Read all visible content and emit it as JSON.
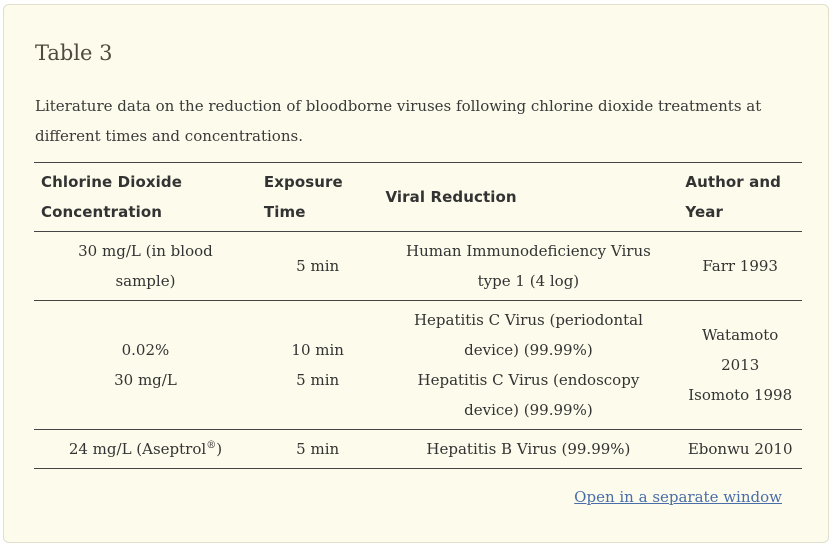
{
  "table_title": "Table 3",
  "caption": "Literature data on the reduction of bloodborne viruses following chlorine dioxide treatments at different times and concentrations.",
  "headers": {
    "concentration": [
      "Chlorine Dioxide",
      "Concentration"
    ],
    "time": [
      "Exposure",
      "Time"
    ],
    "reduction": [
      "Viral Reduction"
    ],
    "author": [
      "Author and",
      "Year"
    ]
  },
  "rows": [
    {
      "concentration": [
        "30 mg/L (in blood",
        "sample)"
      ],
      "time": [
        "5 min"
      ],
      "reduction": [
        "Human Immunodeficiency Virus",
        "type 1 (4 log)"
      ],
      "author": [
        "Farr 1993"
      ]
    },
    {
      "concentration": [
        "0.02%",
        "30 mg/L"
      ],
      "time": [
        "10 min",
        "5 min"
      ],
      "reduction": [
        "Hepatitis C Virus (periodontal",
        "device) (99.99%)",
        "Hepatitis C Virus (endoscopy",
        "device) (99.99%)"
      ],
      "author": [
        "Watamoto",
        "2013",
        "Isomoto 1998"
      ]
    },
    {
      "concentration": [
        "24 mg/L (Aseptrol",
        "®",
        ")"
      ],
      "time": [
        "5 min"
      ],
      "reduction": [
        "Hepatitis B Virus (99.99%)"
      ],
      "author": [
        "Ebonwu 2010"
      ]
    }
  ],
  "open_link": "Open in a separate window"
}
